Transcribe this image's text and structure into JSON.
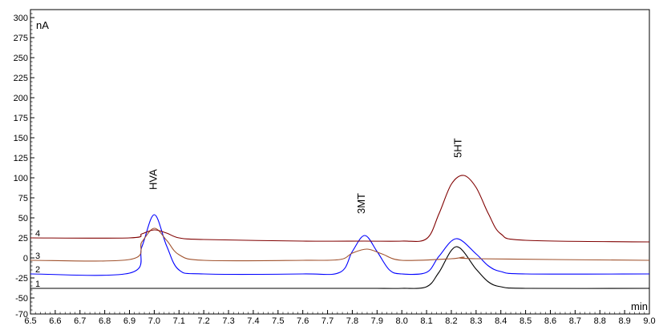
{
  "chart_data": {
    "type": "line",
    "title": "",
    "xlabel": "min",
    "ylabel": "nA",
    "xlim": [
      6.5,
      9.0
    ],
    "ylim": [
      -70,
      310
    ],
    "x_ticks": [
      "6.5",
      "6.6",
      "6.7",
      "6.8",
      "6.9",
      "7.0",
      "7.1",
      "7.2",
      "7.3",
      "7.4",
      "7.5",
      "7.6",
      "7.7",
      "7.8",
      "7.9",
      "8.0",
      "8.1",
      "8.2",
      "8.3",
      "8.4",
      "8.5",
      "8.6",
      "8.7",
      "8.8",
      "8.9",
      "9.0"
    ],
    "y_ticks": [
      {
        "value": 300,
        "label": "300"
      },
      {
        "value": 275,
        "label": "275"
      },
      {
        "value": 250,
        "label": "250"
      },
      {
        "value": 225,
        "label": "225"
      },
      {
        "value": 200,
        "label": "200"
      },
      {
        "value": 175,
        "label": "175"
      },
      {
        "value": 150,
        "label": "150"
      },
      {
        "value": 125,
        "label": "125"
      },
      {
        "value": 100,
        "label": "100"
      },
      {
        "value": 75,
        "label": "75"
      },
      {
        "value": 50,
        "label": "50"
      },
      {
        "value": 25,
        "label": "25"
      },
      {
        "value": 0,
        "label": "0"
      },
      {
        "value": -25,
        "label": "-25"
      },
      {
        "value": -50,
        "label": "-50"
      },
      {
        "value": -70,
        "label": "-70"
      }
    ],
    "grid": false,
    "series": [
      {
        "trace": "1",
        "color": "#000000",
        "x": [
          6.5,
          6.9,
          7.0,
          7.1,
          7.6,
          7.8,
          7.85,
          7.9,
          8.0,
          8.1,
          8.15,
          8.22,
          8.3,
          8.35,
          8.4,
          8.5,
          9.0
        ],
        "y": [
          -38,
          -38,
          -38,
          -38,
          -38,
          -38,
          -38,
          -38,
          -38,
          -36,
          -18,
          14,
          -14,
          -30,
          -36,
          -38,
          -38
        ]
      },
      {
        "trace": "2",
        "color": "#0000ff",
        "x": [
          6.5,
          6.9,
          6.95,
          7.0,
          7.05,
          7.1,
          7.2,
          7.6,
          7.75,
          7.8,
          7.85,
          7.9,
          7.95,
          8.0,
          8.1,
          8.15,
          8.22,
          8.3,
          8.35,
          8.4,
          8.5,
          9.0
        ],
        "y": [
          -20,
          -19,
          14,
          54,
          15,
          -15,
          -20,
          -20,
          -18,
          8,
          28,
          8,
          -15,
          -20,
          -18,
          2,
          24,
          5,
          -10,
          -17,
          -20,
          -20
        ]
      },
      {
        "trace": "3",
        "color": "#a0522d",
        "x": [
          6.5,
          6.9,
          6.95,
          7.0,
          7.05,
          7.1,
          7.2,
          7.6,
          7.75,
          7.8,
          7.86,
          7.92,
          8.0,
          8.2,
          8.25,
          8.3,
          9.0
        ],
        "y": [
          -3,
          -2,
          20,
          37,
          22,
          4,
          -3,
          -3,
          -2,
          6,
          11,
          5,
          -3,
          -1,
          1,
          -1,
          -3
        ]
      },
      {
        "trace": "4",
        "color": "#800000",
        "x": [
          6.5,
          6.9,
          6.95,
          7.0,
          7.05,
          7.1,
          7.2,
          7.6,
          7.85,
          8.0,
          8.1,
          8.15,
          8.2,
          8.25,
          8.3,
          8.35,
          8.4,
          8.5,
          9.0
        ],
        "y": [
          25,
          25,
          30,
          35,
          31,
          25,
          23,
          21,
          21,
          21,
          24,
          55,
          92,
          103,
          88,
          55,
          30,
          22,
          20
        ]
      }
    ],
    "trace_labels": [
      "1",
      "2",
      "3",
      "4"
    ],
    "annotations": [
      {
        "text": "HVA",
        "x": 7.01,
        "y": 85
      },
      {
        "text": "3MT",
        "x": 7.85,
        "y": 55
      },
      {
        "text": "5HT",
        "x": 8.24,
        "y": 125
      }
    ]
  }
}
